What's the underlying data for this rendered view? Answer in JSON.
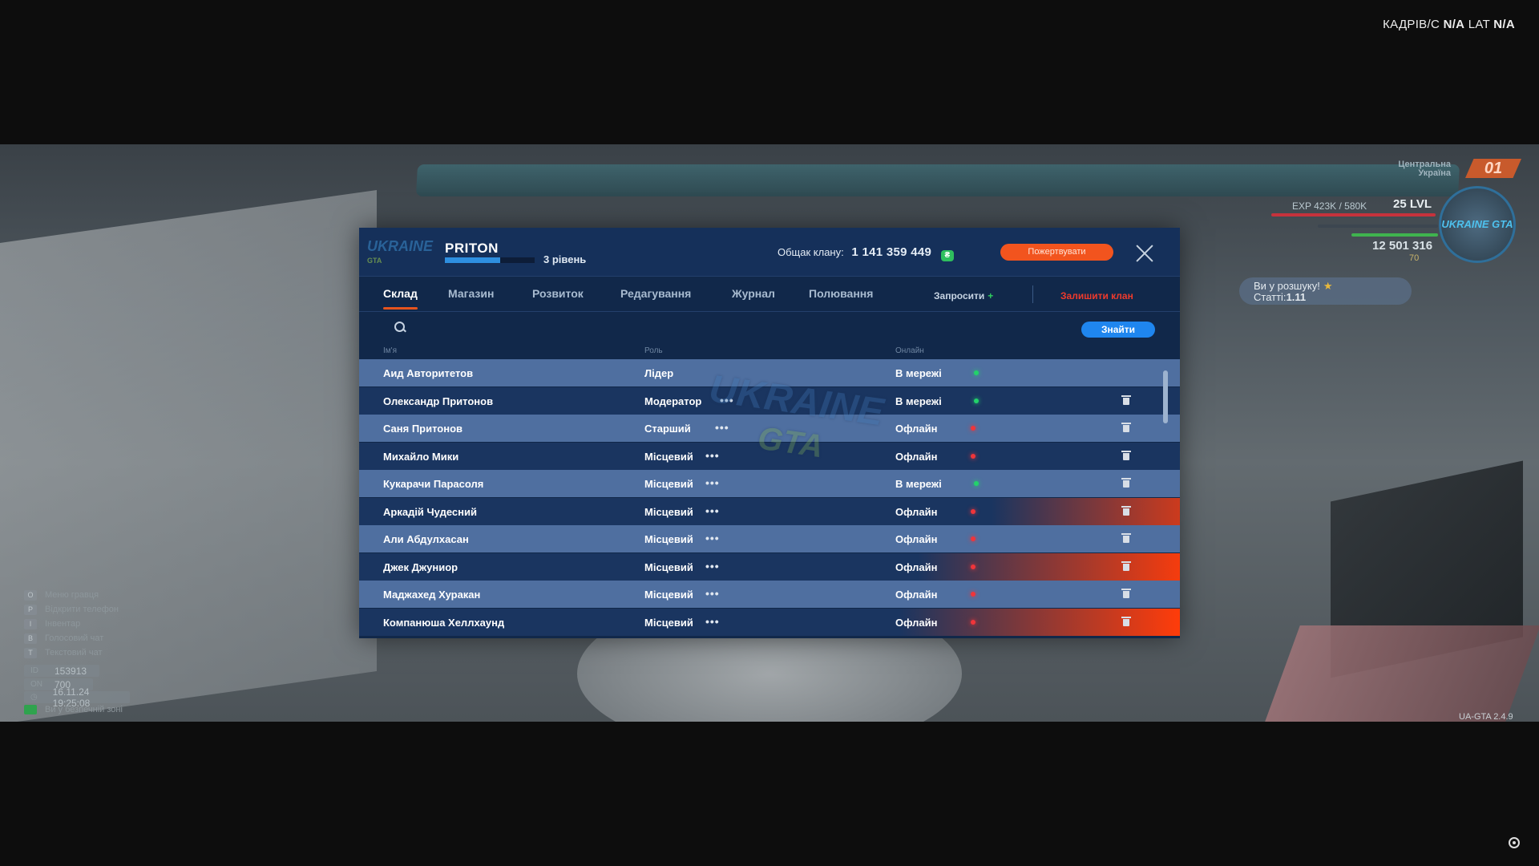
{
  "fps_label": "КАДРІВ/С",
  "fps_value": "N/A",
  "lat_label": "LAT",
  "lat_value": "N/A",
  "hud": {
    "region": "Центральна Україна",
    "region_number": "01",
    "exp": "EXP 423K / 580K",
    "level": "25 LVL",
    "money": "12 501 316",
    "coins": "70",
    "logo": "UKRAINE GTA",
    "wanted_title": "Ви у розшуку!",
    "wanted_stat_label": "Статті:",
    "wanted_stat_value": "1.11",
    "version": "UA-GTA 2.4.9",
    "keys": [
      {
        "key": "O",
        "label": "Меню гравця"
      },
      {
        "key": "P",
        "label": "Відкрити телефон"
      },
      {
        "key": "I",
        "label": "Інвентар"
      },
      {
        "key": "B",
        "label": "Голосовий чат"
      },
      {
        "key": "T",
        "label": "Текстовий чат"
      }
    ],
    "id_label": "ID",
    "id_value": "153913",
    "online_label": "ON",
    "online_value": "700",
    "datetime": "16.11.24 19:25:08",
    "safe_zone": "Ви у безпечній зоні"
  },
  "panel": {
    "logo_text": "UKRAINE",
    "logo_sub": "GTA",
    "clan_name": "PRITON",
    "clan_level": "3 рівень",
    "clan_level_progress": 0.62,
    "treasury_label": "Общак клану:",
    "treasury_value": "1 141 359 449",
    "donate_label": "Пожертвувати",
    "tabs": [
      "Склад",
      "Магазин",
      "Розвиток",
      "Редагування",
      "Журнал",
      "Полювання"
    ],
    "invite_label": "Запросити",
    "leave_label": "Залишити клан",
    "search_placeholder": "",
    "find_label": "Знайти",
    "col_name": "Ім'я",
    "col_role": "Роль",
    "col_online": "Онлайн",
    "watermark_top": "UKRAINE",
    "watermark_bottom": "GTA",
    "members": [
      {
        "name": "Аид Авторитетов",
        "role": "Лідер",
        "status": "В мережі",
        "online": true,
        "menu": false,
        "delete": false,
        "highlight": 0
      },
      {
        "name": "Олександр Притонов",
        "role": "Модератор",
        "status": "В мережі",
        "online": true,
        "menu": true,
        "delete": true,
        "highlight": 0
      },
      {
        "name": "Саня Притонов",
        "role": "Старший",
        "status": "Офлайн",
        "online": false,
        "menu": true,
        "delete": true,
        "highlight": 0
      },
      {
        "name": "Михайло Мики",
        "role": "Місцевий",
        "status": "Офлайн",
        "online": false,
        "menu": true,
        "delete": true,
        "highlight": 0
      },
      {
        "name": "Кукарачи Парасоля",
        "role": "Місцевий",
        "status": "В мережі",
        "online": true,
        "menu": true,
        "delete": true,
        "highlight": 0
      },
      {
        "name": "Аркадій Чудесний",
        "role": "Місцевий",
        "status": "Офлайн",
        "online": false,
        "menu": true,
        "delete": true,
        "highlight": 0.5
      },
      {
        "name": "Али Абдулхасан",
        "role": "Місцевий",
        "status": "Офлайн",
        "online": false,
        "menu": true,
        "delete": true,
        "highlight": 0
      },
      {
        "name": "Джек Джуниор",
        "role": "Місцевий",
        "status": "Офлайн",
        "online": false,
        "menu": true,
        "delete": true,
        "highlight": 0.9
      },
      {
        "name": "Маджахед Хуракан",
        "role": "Місцевий",
        "status": "Офлайн",
        "online": false,
        "menu": true,
        "delete": true,
        "highlight": 0
      },
      {
        "name": "Компанюша Хеллхаунд",
        "role": "Місцевий",
        "status": "Офлайн",
        "online": false,
        "menu": true,
        "delete": true,
        "highlight": 1
      }
    ]
  },
  "colors": {
    "online": "#22d36a",
    "offline": "#f0353a",
    "accent": "#f2541e",
    "find": "#1f86ef"
  }
}
